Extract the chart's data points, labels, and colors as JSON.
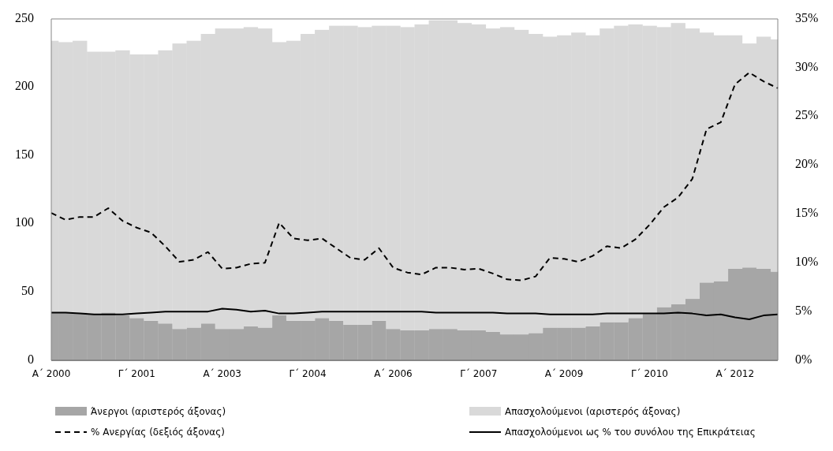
{
  "chart_data": {
    "type": "bar",
    "stacked": true,
    "legend": "bottom",
    "grid": false,
    "categories": [
      "Α΄ 2000",
      null,
      null,
      null,
      null,
      null,
      "Γ΄ 2001",
      null,
      null,
      null,
      null,
      null,
      "Α΄ 2003",
      null,
      null,
      null,
      null,
      null,
      "Γ΄ 2004",
      null,
      null,
      null,
      null,
      null,
      "Α΄ 2006",
      null,
      null,
      null,
      null,
      null,
      "Γ΄ 2007",
      null,
      null,
      null,
      null,
      null,
      "Α΄ 2009",
      null,
      null,
      null,
      null,
      null,
      "Γ΄ 2010",
      null,
      null,
      null,
      null,
      null,
      "Α΄ 2012",
      null,
      null,
      null
    ],
    "ylim": [
      0,
      250
    ],
    "yticks": [
      0,
      50,
      100,
      150,
      200,
      250
    ],
    "y2lim": [
      0,
      35
    ],
    "y2ticks": [
      {
        "value": 0,
        "label": "0%"
      },
      {
        "value": 5,
        "label": "5%"
      },
      {
        "value": 10,
        "label": "10%"
      },
      {
        "value": 15,
        "label": "15%"
      },
      {
        "value": 20,
        "label": "20%"
      },
      {
        "value": 25,
        "label": "25%"
      },
      {
        "value": 30,
        "label": "30%"
      },
      {
        "value": 35,
        "label": "35%"
      }
    ],
    "series": [
      {
        "name": "Άνεργοι (αριστερός άξονας)",
        "color": "#a6a6a6",
        "values": [
          35,
          35,
          35,
          34,
          35,
          33,
          31,
          29,
          27,
          23,
          24,
          27,
          23,
          23,
          25,
          24,
          33,
          29,
          29,
          31,
          29,
          26,
          26,
          29,
          23,
          22,
          22,
          23,
          23,
          22,
          22,
          21,
          19,
          19,
          20,
          24,
          24,
          24,
          25,
          28,
          28,
          31,
          34,
          39,
          41,
          45,
          57,
          58,
          67,
          68,
          67,
          65
        ]
      },
      {
        "name": "Απασχολούμενοι (αριστερός άξονας)",
        "color": "#d9d9d9",
        "values": [
          199,
          198,
          199,
          192,
          191,
          194,
          193,
          195,
          200,
          209,
          210,
          212,
          220,
          220,
          219,
          219,
          200,
          205,
          210,
          211,
          216,
          219,
          218,
          216,
          222,
          222,
          224,
          226,
          226,
          225,
          224,
          222,
          225,
          223,
          219,
          213,
          214,
          216,
          213,
          215,
          217,
          215,
          211,
          205,
          206,
          198,
          183,
          180,
          171,
          164,
          170,
          170
        ]
      },
      {
        "name": "% Ανεργίας (δεξιός άξονας)",
        "type": "line",
        "axis": "y2",
        "line_style": "dashed",
        "color": "#000000",
        "values": [
          15.1,
          14.4,
          14.7,
          14.7,
          15.6,
          14.3,
          13.6,
          13.1,
          11.7,
          10.1,
          10.3,
          11.1,
          9.4,
          9.5,
          9.9,
          10,
          14.1,
          12.5,
          12.3,
          12.5,
          11.5,
          10.5,
          10.3,
          11.5,
          9.5,
          9,
          8.8,
          9.5,
          9.5,
          9.3,
          9.4,
          8.9,
          8.3,
          8.2,
          8.6,
          10.5,
          10.4,
          10.1,
          10.7,
          11.7,
          11.5,
          12.4,
          13.9,
          15.7,
          16.7,
          18.6,
          23.7,
          24.4,
          28.3,
          29.5,
          28.6,
          27.9
        ]
      },
      {
        "name": "Απασχολούμενοι ως % του συνόλου της Επικράτειας",
        "type": "line",
        "axis": "y2",
        "line_style": "solid",
        "color": "#000000",
        "values": [
          4.9,
          4.9,
          4.8,
          4.7,
          4.7,
          4.7,
          4.8,
          4.9,
          5,
          5,
          5,
          5,
          5.3,
          5.2,
          5,
          5.1,
          4.8,
          4.8,
          4.9,
          5,
          5,
          5,
          5,
          5,
          5,
          5,
          5,
          4.9,
          4.9,
          4.9,
          4.9,
          4.9,
          4.8,
          4.8,
          4.8,
          4.7,
          4.7,
          4.7,
          4.7,
          4.8,
          4.8,
          4.8,
          4.8,
          4.8,
          4.9,
          4.8,
          4.6,
          4.7,
          4.4,
          4.2,
          4.6,
          4.7
        ]
      }
    ]
  }
}
